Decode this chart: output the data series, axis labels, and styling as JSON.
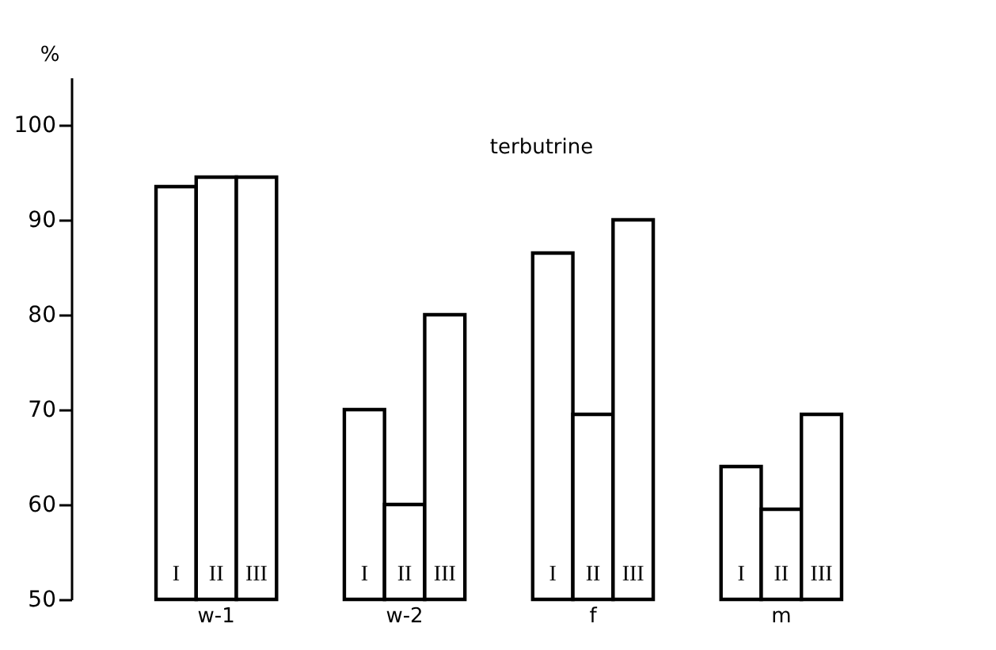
{
  "chart_data": {
    "type": "bar",
    "title": "terbutrine",
    "ylabel": "%",
    "categories": [
      "w-1",
      "w-2",
      "f",
      "m"
    ],
    "series": [
      {
        "name": "I",
        "color": "#ffffff",
        "values": [
          93.5,
          70,
          86.5,
          64
        ]
      },
      {
        "name": "II",
        "color": "#ffffff",
        "values": [
          94.5,
          60,
          69.5,
          59.5
        ]
      },
      {
        "name": "III",
        "color": "#ffffff",
        "values": [
          94.5,
          80,
          90,
          69.5
        ]
      }
    ],
    "ylim": [
      50,
      105
    ],
    "yticks": [
      50,
      60,
      70,
      80,
      90,
      100
    ],
    "grid": false
  }
}
